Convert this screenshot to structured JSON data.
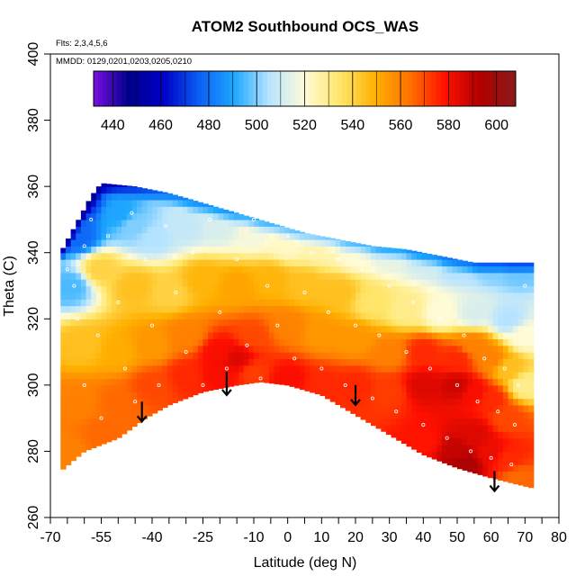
{
  "chart_data": {
    "type": "heatmap",
    "title": "ATOM2 Southbound OCS_WAS",
    "subtitle_flights": "Flts: 2,3,4,5,6",
    "subtitle_dates": "MMDD: 0129,0201,0203,0205,0210",
    "xlabel": "Latitude (deg N)",
    "ylabel": "Theta (C)",
    "xlim": [
      -70,
      80
    ],
    "ylim": [
      260,
      400
    ],
    "x_ticks": [
      -70,
      -55,
      -40,
      -25,
      -10,
      0,
      10,
      20,
      30,
      40,
      50,
      60,
      70,
      80
    ],
    "x_minor_ticks": [
      -65,
      -60,
      -50,
      -45,
      -35,
      -30,
      -20,
      -15,
      -5,
      5,
      15,
      25,
      35,
      45,
      55,
      65,
      75
    ],
    "y_ticks": [
      260,
      280,
      300,
      320,
      340,
      360,
      380,
      400
    ],
    "colorbar": {
      "min": 432,
      "max": 608,
      "ticks": [
        440,
        460,
        480,
        500,
        520,
        540,
        560,
        580,
        600
      ],
      "colors": [
        "#7a0fe0",
        "#00008a",
        "#0000c8",
        "#0a5ff5",
        "#1ea8ff",
        "#b8e4ff",
        "#fffbd6",
        "#ffe66b",
        "#ffb000",
        "#ff7000",
        "#ff1000",
        "#b00000",
        "#8c1a1a"
      ]
    },
    "field": {
      "lat_range": [
        -67,
        72
      ],
      "top_theta": [
        [
          -67,
          340
        ],
        [
          -58,
          357
        ],
        [
          -55,
          361
        ],
        [
          -45,
          360
        ],
        [
          -35,
          358
        ],
        [
          -25,
          355
        ],
        [
          -15,
          352
        ],
        [
          -5,
          349
        ],
        [
          5,
          346
        ],
        [
          15,
          344
        ],
        [
          25,
          342
        ],
        [
          35,
          341
        ],
        [
          45,
          339
        ],
        [
          55,
          337
        ],
        [
          65,
          337
        ],
        [
          72,
          337
        ]
      ],
      "bottom_theta": [
        [
          -67,
          274
        ],
        [
          -60,
          280
        ],
        [
          -50,
          284
        ],
        [
          -42,
          290
        ],
        [
          -35,
          294
        ],
        [
          -25,
          298
        ],
        [
          -15,
          300
        ],
        [
          -8,
          301
        ],
        [
          0,
          300
        ],
        [
          10,
          297
        ],
        [
          20,
          291
        ],
        [
          30,
          285
        ],
        [
          40,
          279
        ],
        [
          50,
          275
        ],
        [
          60,
          272
        ],
        [
          68,
          270
        ],
        [
          72,
          269
        ]
      ],
      "value_anchors": [
        [
          -60,
          355,
          470
        ],
        [
          -62,
          345,
          478
        ],
        [
          -64,
          330,
          495
        ],
        [
          -50,
          352,
          490
        ],
        [
          -45,
          348,
          500
        ],
        [
          -40,
          345,
          505
        ],
        [
          -30,
          348,
          508
        ],
        [
          -20,
          348,
          512
        ],
        [
          -10,
          346,
          518
        ],
        [
          0,
          343,
          522
        ],
        [
          10,
          342,
          525
        ],
        [
          20,
          340,
          520
        ],
        [
          30,
          339,
          515
        ],
        [
          40,
          338,
          510
        ],
        [
          50,
          336,
          505
        ],
        [
          60,
          336,
          500
        ],
        [
          68,
          335,
          498
        ],
        [
          -55,
          335,
          540
        ],
        [
          -45,
          330,
          545
        ],
        [
          -35,
          328,
          540
        ],
        [
          -25,
          332,
          548
        ],
        [
          -15,
          330,
          552
        ],
        [
          -5,
          332,
          548
        ],
        [
          5,
          330,
          545
        ],
        [
          15,
          328,
          545
        ],
        [
          25,
          325,
          535
        ],
        [
          35,
          323,
          530
        ],
        [
          45,
          322,
          520
        ],
        [
          55,
          322,
          512
        ],
        [
          65,
          320,
          505
        ],
        [
          70,
          315,
          520
        ],
        [
          -60,
          312,
          545
        ],
        [
          -50,
          310,
          550
        ],
        [
          -40,
          312,
          555
        ],
        [
          -30,
          315,
          560
        ],
        [
          -20,
          310,
          580
        ],
        [
          -15,
          308,
          585
        ],
        [
          -10,
          315,
          570
        ],
        [
          0,
          318,
          560
        ],
        [
          10,
          316,
          555
        ],
        [
          20,
          314,
          555
        ],
        [
          30,
          310,
          560
        ],
        [
          40,
          310,
          575
        ],
        [
          50,
          308,
          575
        ],
        [
          55,
          312,
          560
        ],
        [
          60,
          308,
          560
        ],
        [
          65,
          305,
          545
        ],
        [
          70,
          300,
          530
        ],
        [
          -62,
          295,
          560
        ],
        [
          -50,
          295,
          565
        ],
        [
          -40,
          300,
          570
        ],
        [
          -30,
          303,
          575
        ],
        [
          -20,
          304,
          580
        ],
        [
          -10,
          304,
          572
        ],
        [
          0,
          302,
          580
        ],
        [
          10,
          300,
          575
        ],
        [
          20,
          300,
          575
        ],
        [
          30,
          298,
          572
        ],
        [
          40,
          300,
          585
        ],
        [
          50,
          300,
          588
        ],
        [
          55,
          298,
          580
        ],
        [
          60,
          296,
          575
        ],
        [
          65,
          290,
          570
        ],
        [
          -65,
          280,
          560
        ],
        [
          -55,
          285,
          565
        ],
        [
          40,
          283,
          578
        ],
        [
          50,
          280,
          590
        ],
        [
          55,
          285,
          585
        ],
        [
          60,
          280,
          582
        ],
        [
          65,
          278,
          575
        ],
        [
          68,
          272,
          565
        ],
        [
          52,
          276,
          595
        ]
      ]
    },
    "arrows": [
      {
        "lat": -43,
        "theta_top": 295,
        "theta_bottom": 289
      },
      {
        "lat": -18,
        "theta_top": 304,
        "theta_bottom": 297
      },
      {
        "lat": 20,
        "theta_top": 300,
        "theta_bottom": 294
      },
      {
        "lat": 61,
        "theta_top": 274,
        "theta_bottom": 268
      }
    ],
    "sample_points": [
      [
        -65,
        335
      ],
      [
        -63,
        330
      ],
      [
        -62,
        320
      ],
      [
        -60,
        342
      ],
      [
        -60,
        300
      ],
      [
        -58,
        350
      ],
      [
        -56,
        315
      ],
      [
        -55,
        290
      ],
      [
        -53,
        345
      ],
      [
        -50,
        325
      ],
      [
        -48,
        305
      ],
      [
        -46,
        352
      ],
      [
        -45,
        295
      ],
      [
        -42,
        338
      ],
      [
        -40,
        318
      ],
      [
        -38,
        300
      ],
      [
        -36,
        348
      ],
      [
        -33,
        328
      ],
      [
        -30,
        310
      ],
      [
        -28,
        340
      ],
      [
        -25,
        300
      ],
      [
        -23,
        350
      ],
      [
        -20,
        322
      ],
      [
        -18,
        305
      ],
      [
        -15,
        338
      ],
      [
        -12,
        312
      ],
      [
        -10,
        350
      ],
      [
        -8,
        302
      ],
      [
        -6,
        330
      ],
      [
        -3,
        318
      ],
      [
        0,
        345
      ],
      [
        2,
        308
      ],
      [
        5,
        328
      ],
      [
        7,
        340
      ],
      [
        10,
        305
      ],
      [
        12,
        322
      ],
      [
        15,
        338
      ],
      [
        17,
        300
      ],
      [
        20,
        318
      ],
      [
        22,
        335
      ],
      [
        25,
        296
      ],
      [
        27,
        315
      ],
      [
        30,
        330
      ],
      [
        32,
        292
      ],
      [
        35,
        310
      ],
      [
        37,
        325
      ],
      [
        40,
        288
      ],
      [
        42,
        305
      ],
      [
        45,
        320
      ],
      [
        47,
        284
      ],
      [
        50,
        300
      ],
      [
        52,
        315
      ],
      [
        54,
        280
      ],
      [
        56,
        295
      ],
      [
        58,
        308
      ],
      [
        60,
        278
      ],
      [
        62,
        292
      ],
      [
        64,
        305
      ],
      [
        66,
        276
      ],
      [
        67,
        288
      ],
      [
        68,
        300
      ],
      [
        70,
        330
      ]
    ]
  }
}
